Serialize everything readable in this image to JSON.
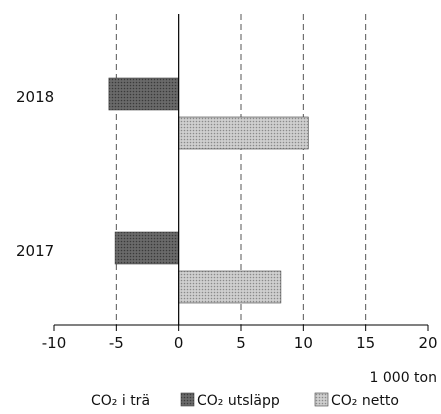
{
  "chart_data": {
    "type": "bar",
    "orientation": "horizontal",
    "categories": [
      "2018",
      "2017"
    ],
    "series": [
      {
        "name": "CO₂ i trä",
        "values": [
          0,
          0
        ],
        "color": "#ffffff",
        "pattern": "none"
      },
      {
        "name": "CO₂ utsläpp",
        "values": [
          -5.6,
          -5.1
        ],
        "color": "#5a5a5a",
        "pattern": "dark-dots"
      },
      {
        "name": "CO₂ netto",
        "values": [
          10.4,
          8.2
        ],
        "color": "#b8b8b8",
        "pattern": "light-dots"
      }
    ],
    "xlim": [
      -10,
      20
    ],
    "x_ticks": [
      "-10",
      "-5",
      "0",
      "5",
      "10",
      "15",
      "20"
    ],
    "unit_label": "1 000 ton",
    "grid": "vertical dashed at 5-unit intervals",
    "legend_position": "bottom"
  }
}
